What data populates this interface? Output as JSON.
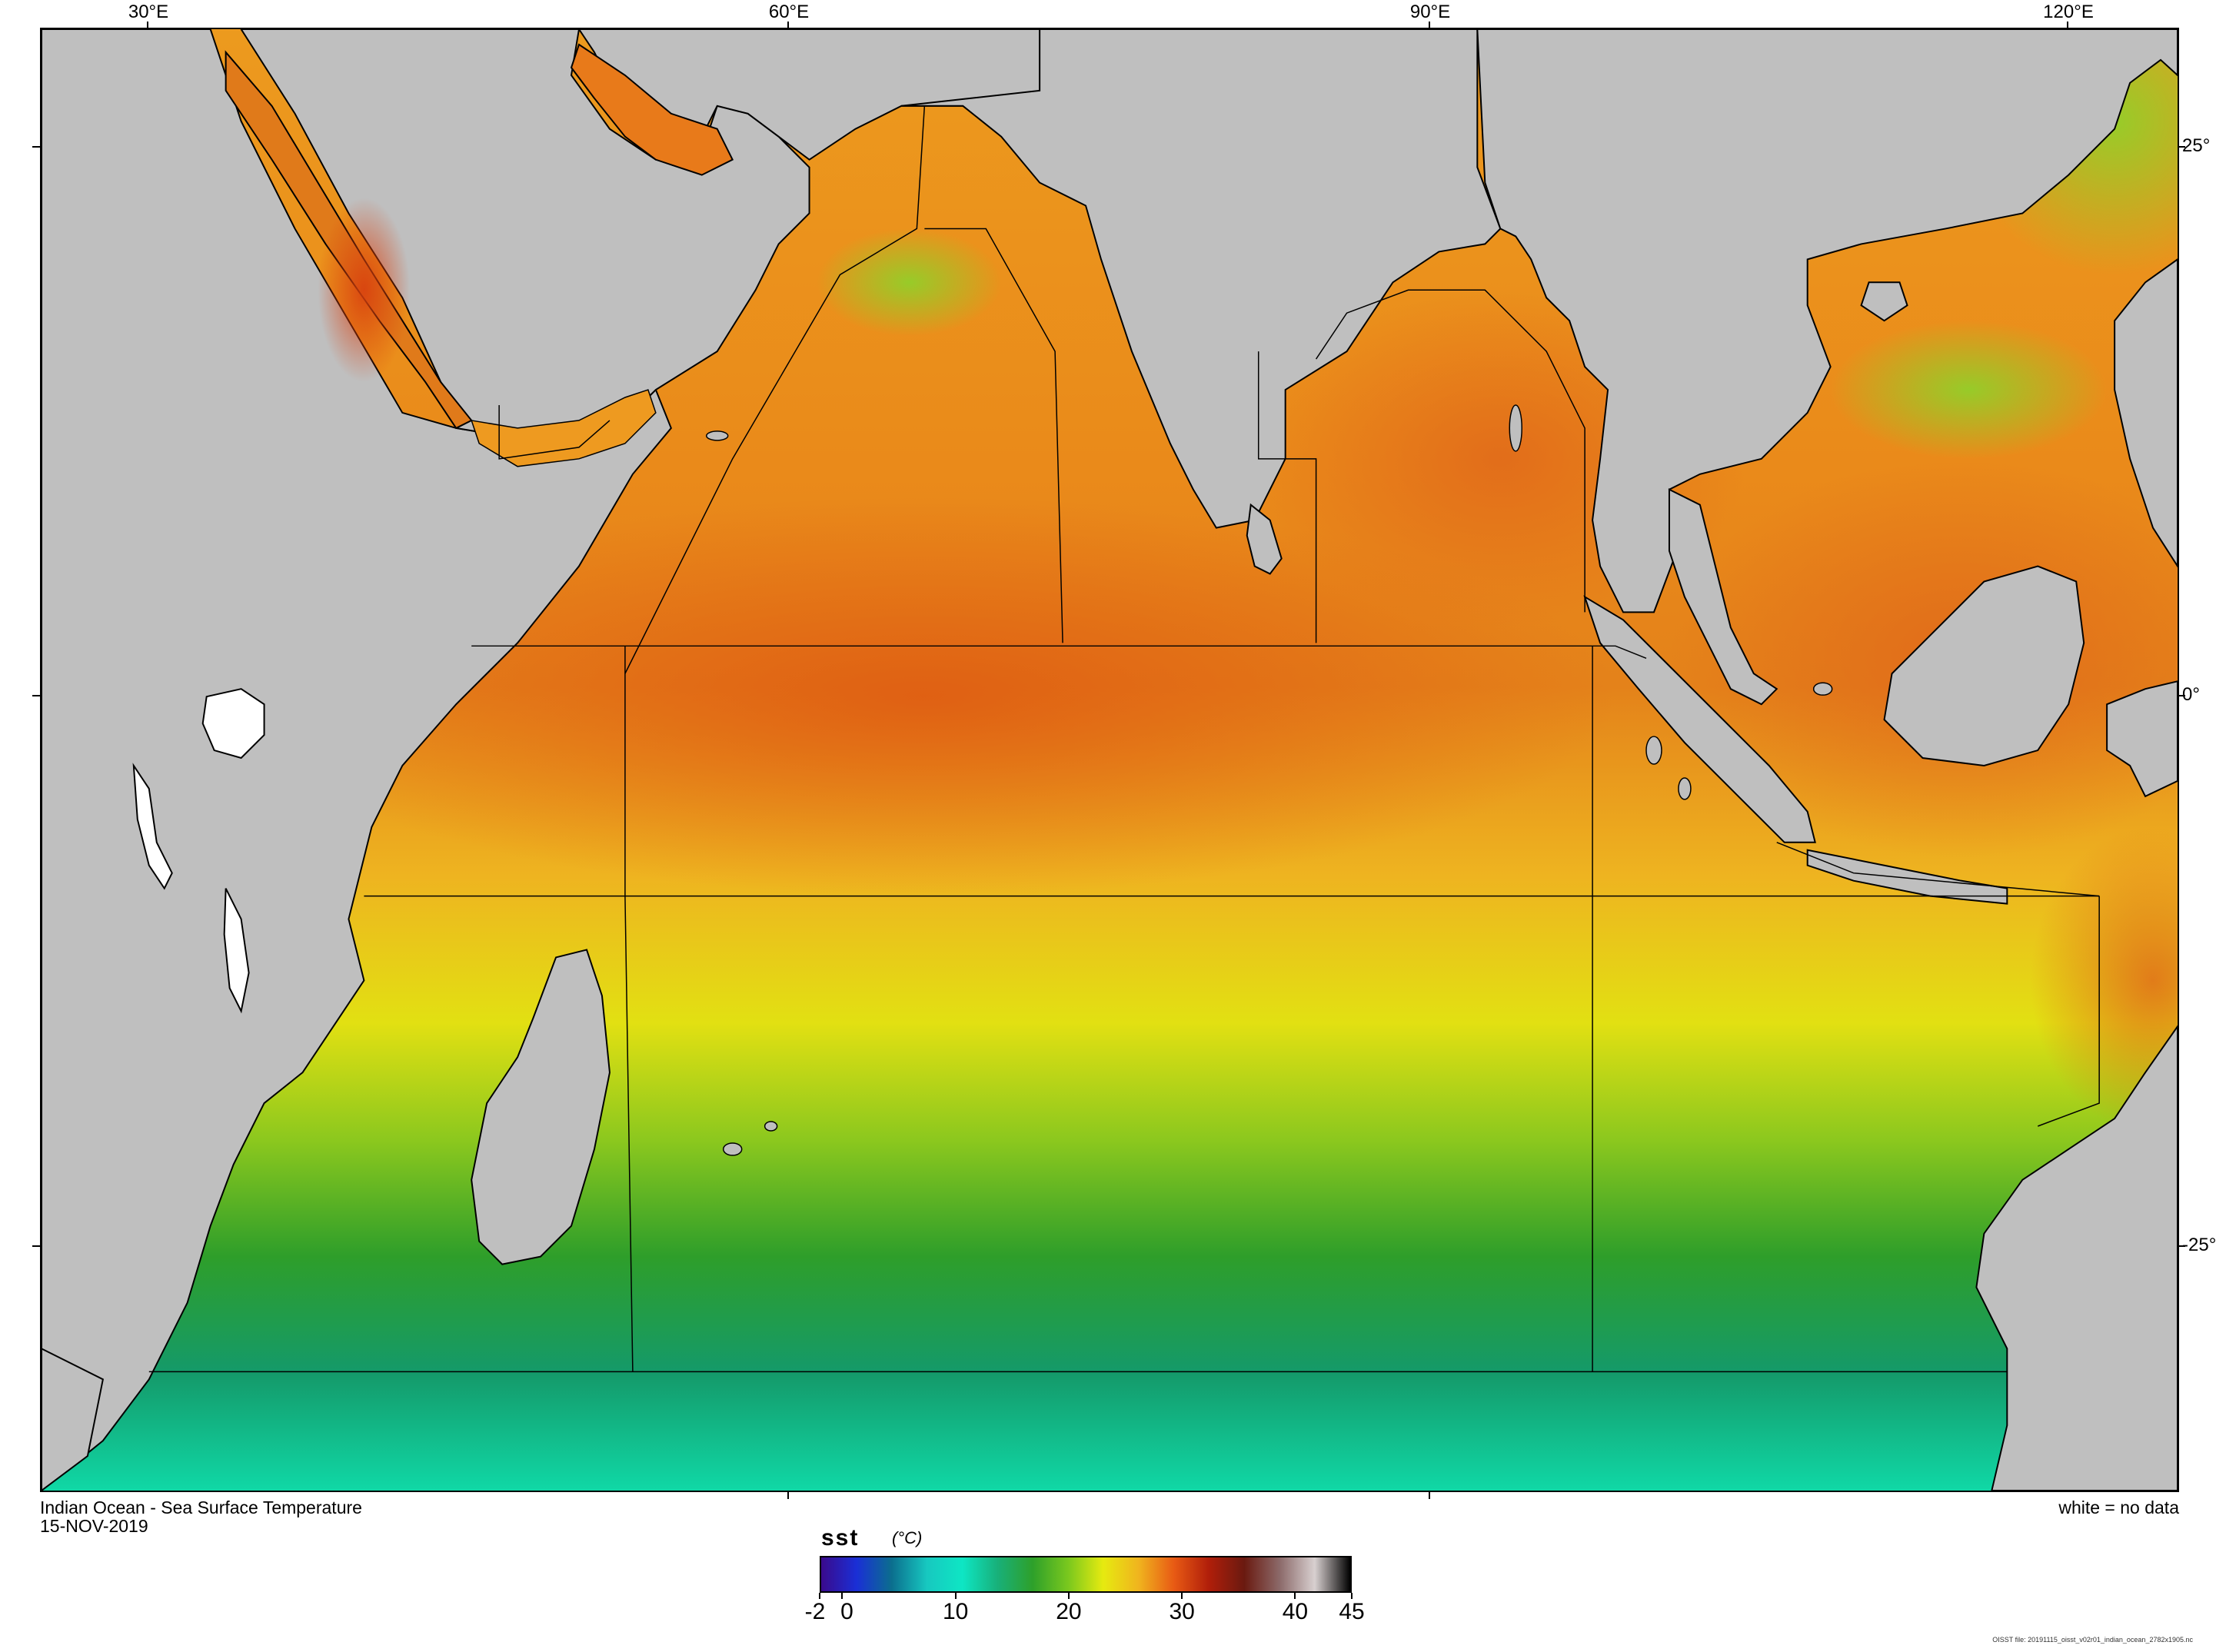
{
  "map": {
    "title": "Indian Ocean - Sea Surface Temperature",
    "date": "15-NOV-2019",
    "no_data_note": "white = no data",
    "file_note": "OISST file: 20191115_oisst_v02r01_indian_ocean_2782x1905.nc",
    "longitude_labels": [
      "30°E",
      "60°E",
      "90°E",
      "120°E"
    ],
    "latitude_labels": [
      "25°",
      "0°",
      "-25°"
    ],
    "land_color": "#bfbfbf",
    "no_data_color": "#ffffff",
    "coastline_color": "#000000"
  },
  "colorbar": {
    "variable": "sst",
    "unit": "(°C)",
    "min": -2,
    "max": 45,
    "tick_labels": [
      "-2",
      "0",
      "10",
      "20",
      "30",
      "40",
      "45"
    ],
    "tick_values": [
      -2,
      0,
      10,
      20,
      30,
      40,
      45
    ],
    "colors": [
      "#3a0a8c",
      "#1a2fd6",
      "#0b6e8e",
      "#17c8c0",
      "#0ee6c4",
      "#18b07a",
      "#2ea02a",
      "#7ac81e",
      "#e6ea10",
      "#f0b41e",
      "#e85a14",
      "#b01e0a",
      "#6a1a10",
      "#8c6a6a",
      "#d8d0d0",
      "#000000"
    ]
  }
}
